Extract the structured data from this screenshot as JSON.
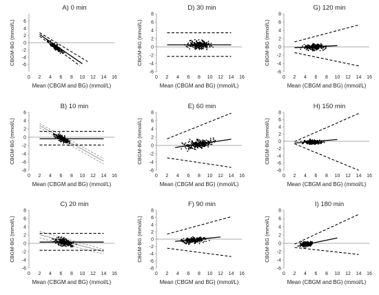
{
  "colors": {
    "points": "#000000",
    "axis": "#8c8c8c",
    "line": "#000000",
    "grey_line": "#9a9a9a"
  },
  "chart_data": [
    {
      "type": "scatter",
      "title": "A) 0 min",
      "xlabel": "Mean (CBGM and BG) (mmol/L)",
      "ylabel": "CBGM-BG (mmol/L)",
      "xlim": [
        0,
        16
      ],
      "ylim": [
        -8,
        8
      ],
      "xticks": [
        0,
        2,
        4,
        6,
        8,
        10,
        12,
        14,
        16
      ],
      "yticks": [
        -6,
        -4,
        -2,
        0,
        2,
        4,
        6
      ],
      "cloud": {
        "x_range": [
          3.5,
          6.5
        ],
        "y_center": -1.2,
        "spread": 1.0,
        "slope": -1.0,
        "x_mean": 5.0,
        "n": 150
      },
      "lines": [
        {
          "x": [
            2,
            11
          ],
          "y": [
            2.8,
            -5.2
          ],
          "style": "dash"
        },
        {
          "x": [
            2,
            10
          ],
          "y": [
            2.3,
            -5.8
          ],
          "style": "solid"
        },
        {
          "x": [
            2,
            9.5
          ],
          "y": [
            1.8,
            -6.3
          ],
          "style": "dash"
        }
      ],
      "grey_lines": []
    },
    {
      "type": "scatter",
      "title": "D) 30 min",
      "xlabel": "Mean (CBGM and BG) (mmol/L)",
      "ylabel": "CBGM-BG (mmol/L)",
      "xlim": [
        0,
        16
      ],
      "ylim": [
        -6,
        8
      ],
      "xticks": [
        0,
        2,
        4,
        6,
        8,
        10,
        12,
        14,
        16
      ],
      "yticks": [
        -6,
        -4,
        -2,
        0,
        2,
        4,
        6,
        8
      ],
      "cloud": {
        "x_range": [
          5.5,
          10.5
        ],
        "y_center": 0.5,
        "spread": 1.4,
        "slope": 0,
        "x_mean": 8.0,
        "n": 240
      },
      "lines": [
        {
          "x": [
            2,
            14
          ],
          "y": [
            3.4,
            3.4
          ],
          "style": "dash"
        },
        {
          "x": [
            2,
            14
          ],
          "y": [
            0.5,
            0.5
          ],
          "style": "solid"
        },
        {
          "x": [
            2,
            14
          ],
          "y": [
            -2.3,
            -2.3
          ],
          "style": "dash"
        }
      ],
      "grey_lines": []
    },
    {
      "type": "scatter",
      "title": "G) 120 min",
      "xlabel": "Mean (CBGM and BG) (mmol/L)",
      "ylabel": "CBGM-BG (mmol/L)",
      "xlim": [
        0,
        16
      ],
      "ylim": [
        -6,
        8
      ],
      "xticks": [
        0,
        2,
        4,
        6,
        8,
        10,
        12,
        14,
        16
      ],
      "yticks": [
        -6,
        -4,
        -2,
        0,
        2,
        4,
        6,
        8
      ],
      "cloud": {
        "x_range": [
          3.5,
          8
        ],
        "y_center": 0.0,
        "spread": 1.1,
        "slope": 0,
        "x_mean": 5.5,
        "n": 230
      },
      "lines": [
        {
          "x": [
            2,
            14
          ],
          "y": [
            1.2,
            5.3
          ],
          "style": "dash"
        },
        {
          "x": [
            2,
            10
          ],
          "y": [
            -0.2,
            0.3
          ],
          "style": "solid"
        },
        {
          "x": [
            2,
            14
          ],
          "y": [
            -1.4,
            -4.6
          ],
          "style": "dash"
        }
      ],
      "grey_lines": []
    },
    {
      "type": "scatter",
      "title": "B) 10 min",
      "xlabel": "Mean (CBGM and BG) (mmol/L)",
      "ylabel": "CBGM-BG (mmol/L)",
      "xlim": [
        0,
        16
      ],
      "ylim": [
        -8,
        6
      ],
      "xticks": [
        0,
        2,
        4,
        6,
        8,
        10,
        12,
        14,
        16
      ],
      "yticks": [
        -8,
        -6,
        -4,
        -2,
        0,
        2,
        4,
        6
      ],
      "cloud": {
        "x_range": [
          4.5,
          8
        ],
        "y_center": -0.4,
        "spread": 1.0,
        "slope": -0.6,
        "x_mean": 6.3,
        "n": 200
      },
      "lines": [
        {
          "x": [
            2,
            14
          ],
          "y": [
            1.4,
            1.4
          ],
          "style": "dash"
        },
        {
          "x": [
            2,
            14
          ],
          "y": [
            -0.4,
            -0.4
          ],
          "style": "solid"
        },
        {
          "x": [
            2,
            14
          ],
          "y": [
            -1.9,
            -1.9
          ],
          "style": "dash"
        }
      ],
      "grey_lines": [
        {
          "x": [
            2,
            14
          ],
          "y": [
            3.3,
            -5.2
          ],
          "style": "dash"
        },
        {
          "x": [
            2,
            14
          ],
          "y": [
            2.8,
            -5.8
          ],
          "style": "solid"
        },
        {
          "x": [
            2,
            14
          ],
          "y": [
            2.3,
            -6.5
          ],
          "style": "dash"
        }
      ]
    },
    {
      "type": "scatter",
      "title": "E) 60 min",
      "xlabel": "Mean (CBGM and BG) (mmol/L)",
      "ylabel": "CBGM-BG (mmol/L)",
      "xlim": [
        0,
        16
      ],
      "ylim": [
        -6,
        8
      ],
      "xticks": [
        0,
        2,
        4,
        6,
        8,
        10,
        12,
        14,
        16
      ],
      "yticks": [
        -6,
        -4,
        -2,
        0,
        2,
        4,
        6,
        8
      ],
      "cloud": {
        "x_range": [
          5,
          11
        ],
        "y_center": 0.3,
        "spread": 1.5,
        "slope": 0.15,
        "x_mean": 8.0,
        "n": 260
      },
      "lines": [
        {
          "x": [
            2,
            14
          ],
          "y": [
            1.6,
            7.8
          ],
          "style": "dash"
        },
        {
          "x": [
            3.5,
            14
          ],
          "y": [
            -0.5,
            1.5
          ],
          "style": "solid"
        },
        {
          "x": [
            2,
            14
          ],
          "y": [
            -3.0,
            -5.3
          ],
          "style": "dash"
        }
      ],
      "grey_lines": []
    },
    {
      "type": "scatter",
      "title": "H) 150 min",
      "xlabel": "Mean (CBGM and BG) (mmol/L)",
      "ylabel": "CBGM-BG (mmol/L)",
      "xlim": [
        0,
        16
      ],
      "ylim": [
        -8,
        8
      ],
      "xticks": [
        0,
        2,
        4,
        6,
        8,
        10,
        12,
        14,
        16
      ],
      "yticks": [
        -8,
        -6,
        -4,
        -2,
        0,
        2,
        4,
        6,
        8
      ],
      "cloud": {
        "x_range": [
          3.5,
          7.5
        ],
        "y_center": -0.2,
        "spread": 0.8,
        "slope": 0,
        "x_mean": 5.0,
        "n": 230
      },
      "lines": [
        {
          "x": [
            2,
            14
          ],
          "y": [
            -0.1,
            7.7
          ],
          "style": "dash"
        },
        {
          "x": [
            2,
            10
          ],
          "y": [
            -0.5,
            0.5
          ],
          "style": "solid"
        },
        {
          "x": [
            2,
            14
          ],
          "y": [
            -0.7,
            -8.0
          ],
          "style": "dash"
        }
      ],
      "grey_lines": []
    },
    {
      "type": "scatter",
      "title": "C) 20 min",
      "xlabel": "Mean (CBGM and BG) (mmol/L)",
      "ylabel": "CBGM-BG (mmol/L)",
      "xlim": [
        0,
        16
      ],
      "ylim": [
        -6,
        8
      ],
      "xticks": [
        0,
        2,
        4,
        6,
        8,
        10,
        12,
        14,
        16
      ],
      "yticks": [
        -6,
        -4,
        -2,
        0,
        2,
        4,
        6,
        8
      ],
      "cloud": {
        "x_range": [
          4.5,
          8.5
        ],
        "y_center": 0.3,
        "spread": 1.2,
        "slope": -0.2,
        "x_mean": 6.5,
        "n": 230
      },
      "lines": [
        {
          "x": [
            2,
            14
          ],
          "y": [
            2.4,
            2.4
          ],
          "style": "dash"
        },
        {
          "x": [
            2,
            14
          ],
          "y": [
            0.3,
            0.3
          ],
          "style": "solid"
        },
        {
          "x": [
            2,
            14
          ],
          "y": [
            -1.7,
            -1.7
          ],
          "style": "dash"
        }
      ],
      "grey_lines": [
        {
          "x": [
            2,
            14
          ],
          "y": [
            2.9,
            -1.5
          ],
          "style": "dash"
        },
        {
          "x": [
            2,
            14
          ],
          "y": [
            2.1,
            -2.0
          ],
          "style": "solid"
        },
        {
          "x": [
            2,
            14
          ],
          "y": [
            1.3,
            -2.6
          ],
          "style": "dash"
        }
      ]
    },
    {
      "type": "scatter",
      "title": "F) 90 min",
      "xlabel": "Mean (CBGM and BG) (mmol/L)",
      "ylabel": "CBGM-BG (mmol/L)",
      "xlim": [
        0,
        16
      ],
      "ylim": [
        -8,
        8
      ],
      "xticks": [
        0,
        2,
        4,
        6,
        8,
        10,
        12,
        14,
        16
      ],
      "yticks": [
        -8,
        -6,
        -4,
        -2,
        0,
        2,
        4,
        6,
        8
      ],
      "cloud": {
        "x_range": [
          4.5,
          9.5
        ],
        "y_center": -0.3,
        "spread": 1.1,
        "slope": 0.1,
        "x_mean": 7.0,
        "n": 250
      },
      "lines": [
        {
          "x": [
            2,
            14
          ],
          "y": [
            1.4,
            6.2
          ],
          "style": "dash"
        },
        {
          "x": [
            3.5,
            12
          ],
          "y": [
            -0.6,
            0.6
          ],
          "style": "solid"
        },
        {
          "x": [
            2,
            14
          ],
          "y": [
            -2.5,
            -4.8
          ],
          "style": "dash"
        }
      ],
      "grey_lines": []
    },
    {
      "type": "scatter",
      "title": "I) 180 min",
      "xlabel": "Mean (CBGM and BG) (mmol/L)",
      "ylabel": "CBGM-BG (mmol/L)",
      "xlim": [
        0,
        16
      ],
      "ylim": [
        -6,
        8
      ],
      "xticks": [
        0,
        2,
        4,
        6,
        8,
        10,
        12,
        14,
        16
      ],
      "yticks": [
        -6,
        -4,
        -2,
        0,
        2,
        4,
        6,
        8
      ],
      "cloud": {
        "x_range": [
          3,
          5.5
        ],
        "y_center": -0.2,
        "spread": 0.8,
        "slope": 0.1,
        "x_mean": 4.0,
        "n": 220
      },
      "lines": [
        {
          "x": [
            2,
            14
          ],
          "y": [
            -0.2,
            7.0
          ],
          "style": "dash"
        },
        {
          "x": [
            2.5,
            10
          ],
          "y": [
            -0.7,
            1.3
          ],
          "style": "solid"
        },
        {
          "x": [
            2,
            14
          ],
          "y": [
            -1.0,
            -2.7
          ],
          "style": "dash"
        }
      ],
      "grey_lines": []
    }
  ]
}
